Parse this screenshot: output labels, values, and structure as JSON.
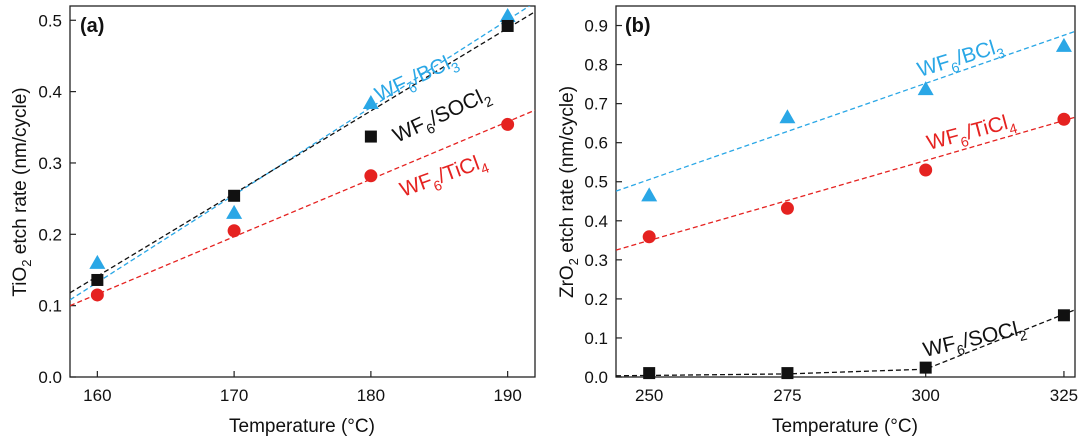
{
  "chart_data": [
    {
      "type": "scatter",
      "panel_label": "(a)",
      "xlabel": "Temperature (°C)",
      "ylabel_main": "TiO",
      "ylabel_sub": "2",
      "ylabel_rest": " etch rate (nm/cycle)",
      "xlim": [
        158,
        192
      ],
      "ylim": [
        0.0,
        0.52
      ],
      "xticks": [
        160,
        170,
        180,
        190
      ],
      "yticks": [
        0.0,
        0.1,
        0.2,
        0.3,
        0.4,
        0.5
      ],
      "grid": false,
      "series": [
        {
          "key": "bcl3",
          "color": "#2aa7e6",
          "marker": "triangle",
          "label_main": "WF",
          "label_sub1": "6",
          "label_mid": "/BCl",
          "label_sub2": "3",
          "x": [
            160,
            170,
            180,
            190
          ],
          "y": [
            0.16,
            0.23,
            0.384,
            0.506
          ],
          "fit": {
            "x": [
              158,
              192
            ],
            "y": [
              0.108,
              0.525
            ]
          }
        },
        {
          "key": "socl2",
          "color": "#111111",
          "marker": "square",
          "label_main": "WF",
          "label_sub1": "6",
          "label_mid": "/SOCl",
          "label_sub2": "2",
          "x": [
            160,
            170,
            180,
            190
          ],
          "y": [
            0.136,
            0.254,
            0.337,
            0.492
          ],
          "fit": {
            "x": [
              158,
              192
            ],
            "y": [
              0.118,
              0.512
            ]
          }
        },
        {
          "key": "ticl4",
          "color": "#e52220",
          "marker": "circle",
          "label_main": "WF",
          "label_sub1": "6",
          "label_mid": "/TiCl",
          "label_sub2": "4",
          "x": [
            160,
            170,
            180,
            190
          ],
          "y": [
            0.115,
            0.205,
            0.282,
            0.354
          ],
          "fit": {
            "x": [
              158,
              192
            ],
            "y": [
              0.1,
              0.374
            ]
          }
        }
      ]
    },
    {
      "type": "scatter",
      "panel_label": "(b)",
      "xlabel": "Temperature (°C)",
      "ylabel_main": "ZrO",
      "ylabel_sub": "2",
      "ylabel_rest": " etch rate (nm/cycle)",
      "xlim": [
        244,
        327
      ],
      "ylim": [
        0.0,
        0.95
      ],
      "xticks": [
        250,
        275,
        300,
        325
      ],
      "yticks": [
        0.0,
        0.1,
        0.2,
        0.3,
        0.4,
        0.5,
        0.6,
        0.7,
        0.8,
        0.9
      ],
      "grid": false,
      "series": [
        {
          "key": "bcl3",
          "color": "#2aa7e6",
          "marker": "triangle",
          "label_main": "WF",
          "label_sub1": "6",
          "label_mid": "/BCl",
          "label_sub2": "3",
          "x": [
            250,
            275,
            300,
            325
          ],
          "y": [
            0.465,
            0.665,
            0.737,
            0.848
          ],
          "fit": {
            "x": [
              244,
              327
            ],
            "y": [
              0.476,
              0.885
            ]
          }
        },
        {
          "key": "ticl4",
          "color": "#e52220",
          "marker": "circle",
          "label_main": "WF",
          "label_sub1": "6",
          "label_mid": "/TiCl",
          "label_sub2": "4",
          "x": [
            250,
            275,
            300,
            325
          ],
          "y": [
            0.359,
            0.432,
            0.53,
            0.66
          ],
          "fit": {
            "x": [
              244,
              327
            ],
            "y": [
              0.325,
              0.665
            ]
          }
        },
        {
          "key": "socl2",
          "color": "#111111",
          "marker": "square",
          "label_main": "WF",
          "label_sub1": "6",
          "label_mid": "/SOCl",
          "label_sub2": "2",
          "x": [
            250,
            275,
            300,
            325
          ],
          "y": [
            0.01,
            0.01,
            0.024,
            0.158
          ],
          "fit": {
            "x": [
              244,
              275,
              300,
              327
            ],
            "y": [
              0.003,
              0.008,
              0.02,
              0.172
            ]
          }
        }
      ]
    }
  ]
}
